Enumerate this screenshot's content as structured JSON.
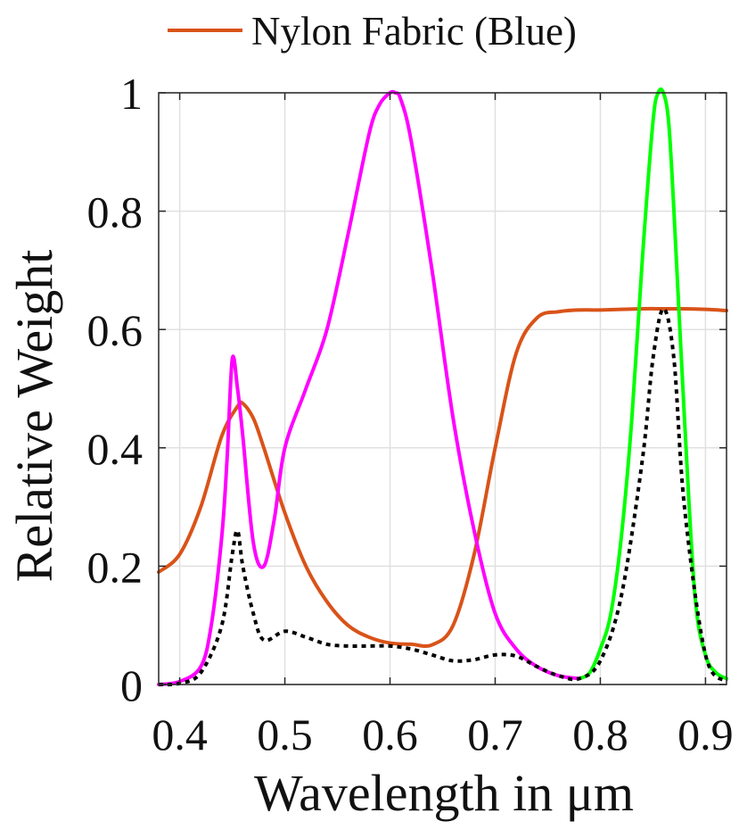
{
  "chart_data": {
    "type": "line",
    "title": "",
    "xlabel": "Wavelength in μm",
    "ylabel": "Relative Weight",
    "xlim": [
      0.38,
      0.92
    ],
    "ylim": [
      0,
      1
    ],
    "xticks": [
      0.4,
      0.5,
      0.6,
      0.7,
      0.8,
      0.9
    ],
    "xtick_labels": [
      "0.4",
      "0.5",
      "0.6",
      "0.7",
      "0.8",
      "0.9"
    ],
    "yticks": [
      0,
      0.2,
      0.4,
      0.6,
      0.8,
      1
    ],
    "ytick_labels": [
      "0",
      "0.2",
      "0.4",
      "0.6",
      "0.8",
      "1"
    ],
    "grid": true,
    "legend_position": "top",
    "series": [
      {
        "name": "Nylon Fabric (Blue)",
        "color": "#d95319",
        "style": "solid",
        "x": [
          0.38,
          0.4,
          0.42,
          0.44,
          0.455,
          0.46,
          0.47,
          0.48,
          0.5,
          0.52,
          0.54,
          0.56,
          0.58,
          0.6,
          0.62,
          0.64,
          0.66,
          0.68,
          0.7,
          0.72,
          0.74,
          0.76,
          0.78,
          0.8,
          0.84,
          0.86,
          0.88,
          0.9,
          0.92
        ],
        "y": [
          0.19,
          0.22,
          0.3,
          0.42,
          0.47,
          0.475,
          0.45,
          0.4,
          0.29,
          0.2,
          0.14,
          0.1,
          0.08,
          0.07,
          0.068,
          0.067,
          0.1,
          0.22,
          0.4,
          0.56,
          0.62,
          0.63,
          0.633,
          0.633,
          0.635,
          0.635,
          0.635,
          0.634,
          0.632
        ]
      },
      {
        "name": "",
        "color": "#ff00ff",
        "style": "solid",
        "x": [
          0.38,
          0.4,
          0.42,
          0.43,
          0.44,
          0.445,
          0.45,
          0.455,
          0.46,
          0.47,
          0.48,
          0.49,
          0.5,
          0.52,
          0.54,
          0.56,
          0.58,
          0.59,
          0.6,
          0.605,
          0.61,
          0.62,
          0.64,
          0.66,
          0.68,
          0.7,
          0.72,
          0.74,
          0.76,
          0.78
        ],
        "y": [
          0.0,
          0.005,
          0.03,
          0.1,
          0.25,
          0.38,
          0.55,
          0.5,
          0.42,
          0.24,
          0.2,
          0.28,
          0.4,
          0.5,
          0.6,
          0.76,
          0.93,
          0.98,
          1.0,
          1.0,
          0.99,
          0.92,
          0.7,
          0.45,
          0.26,
          0.12,
          0.06,
          0.03,
          0.015,
          0.01
        ]
      },
      {
        "name": "",
        "color": "#00ff00",
        "style": "solid",
        "x": [
          0.78,
          0.79,
          0.8,
          0.81,
          0.82,
          0.83,
          0.84,
          0.85,
          0.855,
          0.86,
          0.865,
          0.87,
          0.88,
          0.89,
          0.9,
          0.91,
          0.92
        ],
        "y": [
          0.01,
          0.02,
          0.06,
          0.12,
          0.25,
          0.45,
          0.72,
          0.95,
          1.0,
          1.0,
          0.95,
          0.8,
          0.45,
          0.15,
          0.05,
          0.02,
          0.01
        ]
      },
      {
        "name": "",
        "color": "#000000",
        "style": "dotted",
        "x": [
          0.38,
          0.4,
          0.42,
          0.44,
          0.45,
          0.455,
          0.46,
          0.47,
          0.48,
          0.5,
          0.52,
          0.54,
          0.56,
          0.58,
          0.6,
          0.62,
          0.64,
          0.66,
          0.68,
          0.7,
          0.72,
          0.74,
          0.76,
          0.78,
          0.8,
          0.82,
          0.84,
          0.85,
          0.86,
          0.87,
          0.88,
          0.9,
          0.92
        ],
        "y": [
          0.0,
          0.002,
          0.02,
          0.1,
          0.22,
          0.26,
          0.2,
          0.12,
          0.075,
          0.09,
          0.08,
          0.068,
          0.065,
          0.065,
          0.065,
          0.06,
          0.05,
          0.04,
          0.042,
          0.05,
          0.048,
          0.03,
          0.015,
          0.01,
          0.04,
          0.15,
          0.38,
          0.55,
          0.635,
          0.55,
          0.3,
          0.05,
          0.005
        ]
      }
    ]
  }
}
